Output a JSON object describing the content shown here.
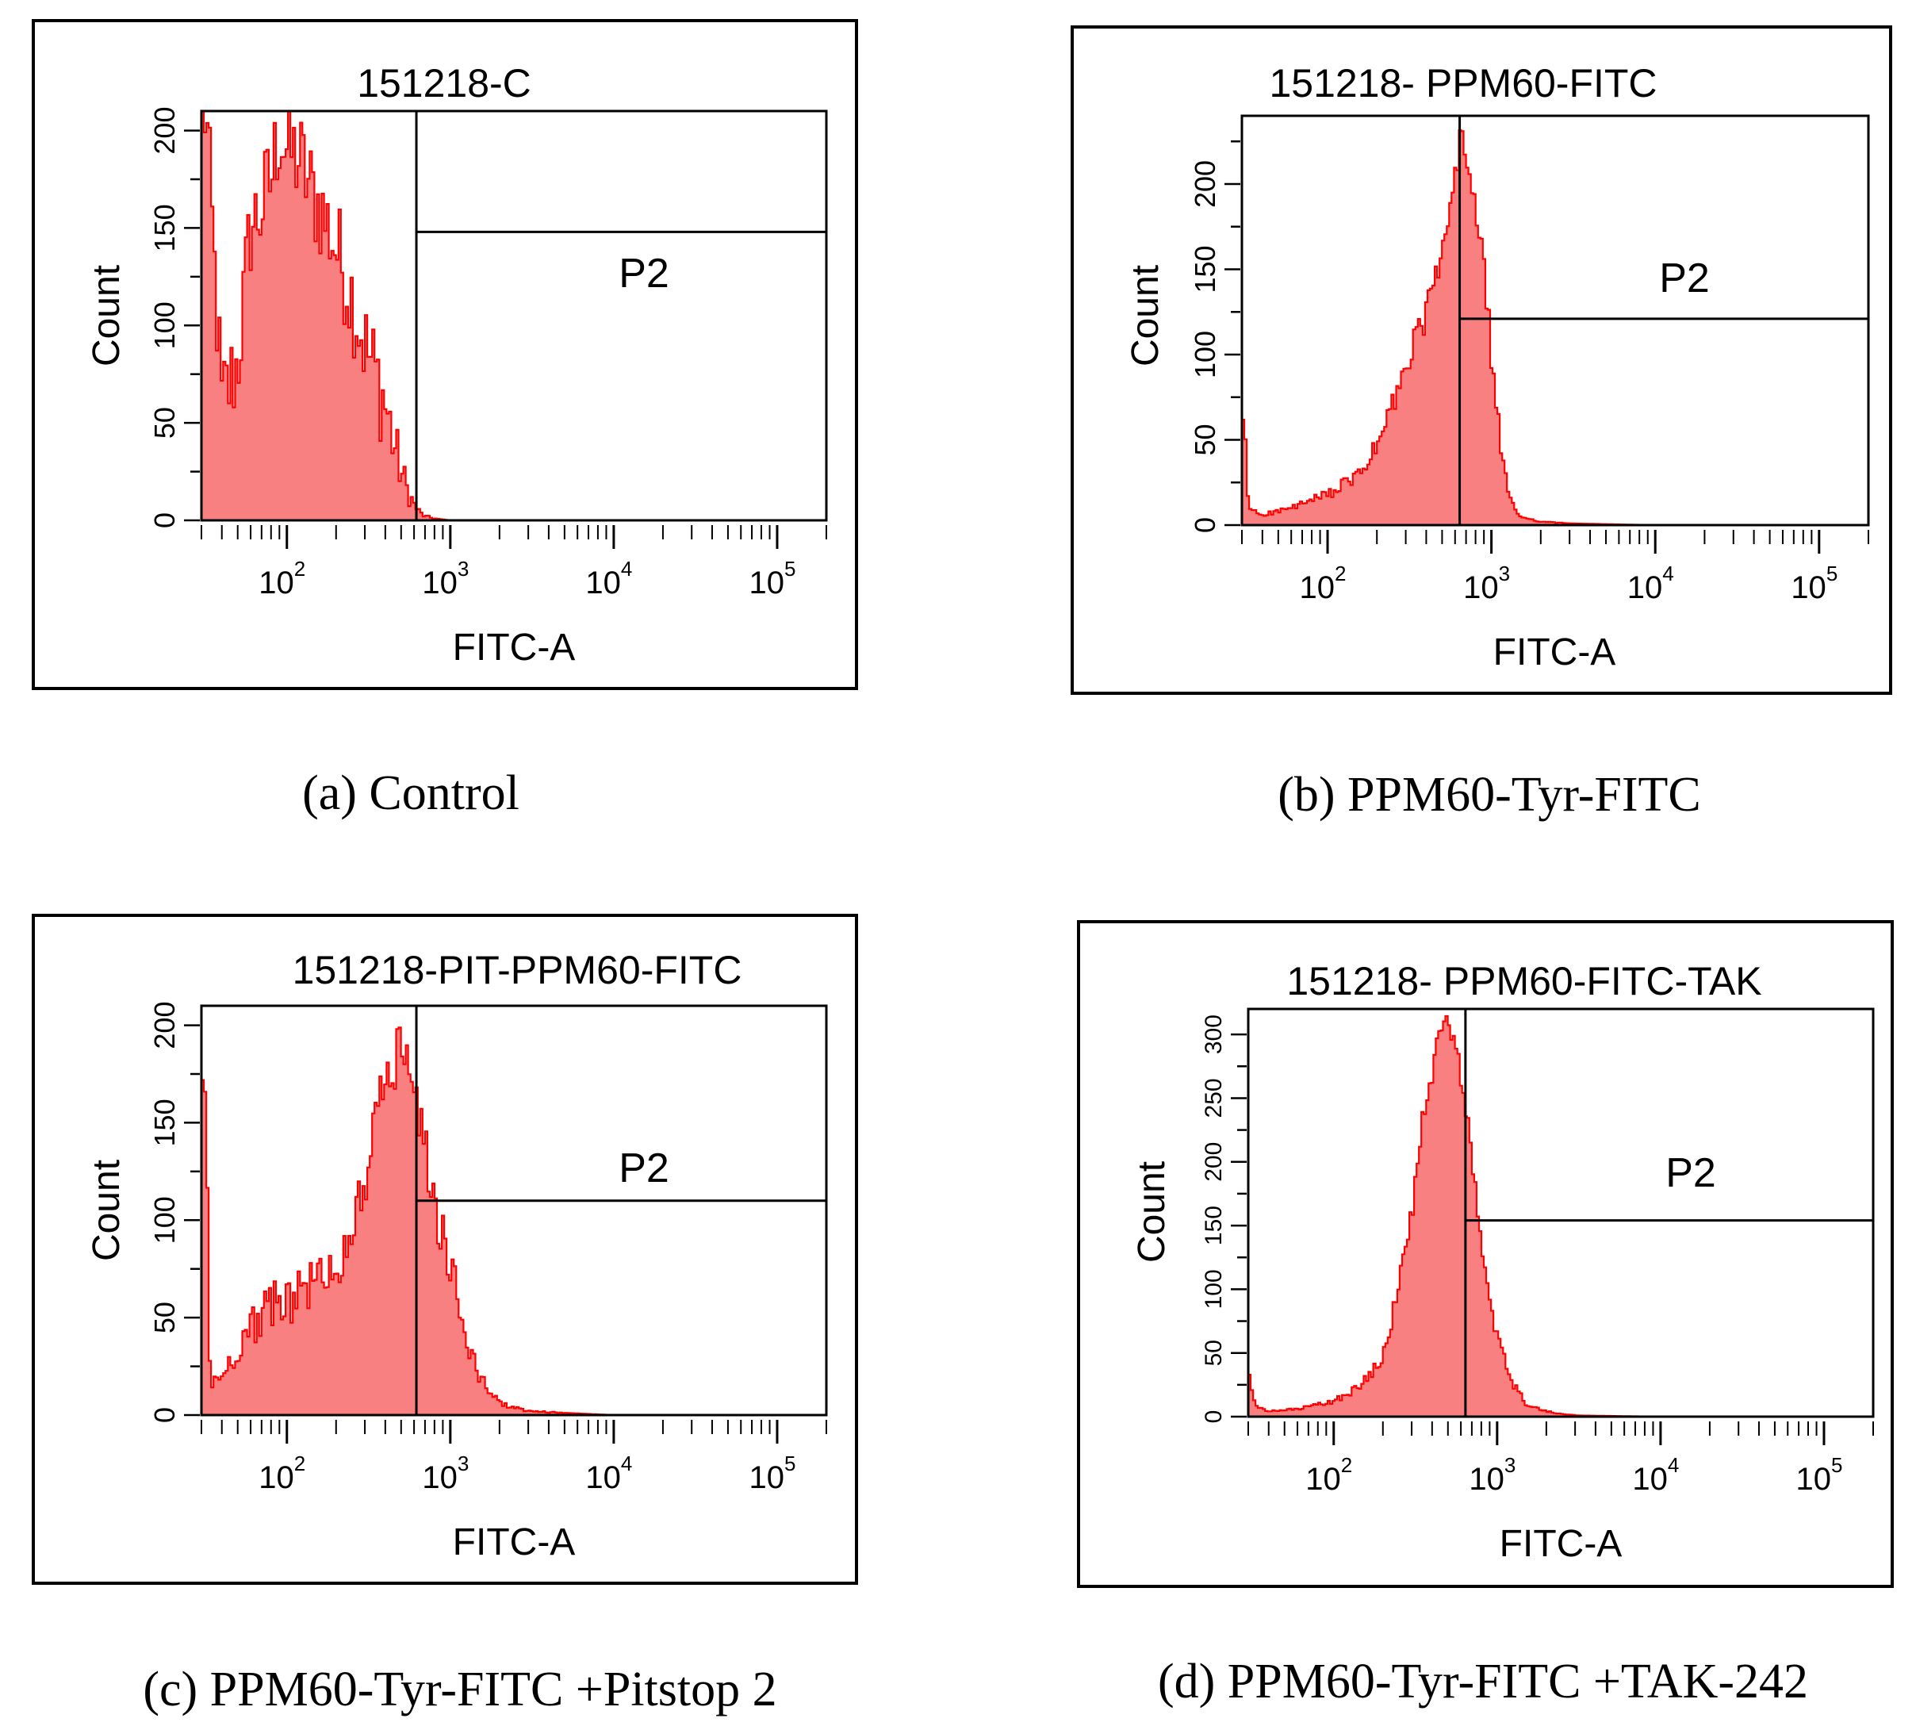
{
  "panels": [
    {
      "id": "a",
      "title": "151218-C",
      "caption": "(a) Control",
      "gate_label": "P2",
      "chart_data": {
        "type": "histogram",
        "title": "151218-C",
        "xlabel": "FITC-A",
        "ylabel": "Count",
        "x_scale": "log",
        "xlim": [
          30,
          200000
        ],
        "ylim": [
          0,
          210
        ],
        "yticks": [
          0,
          50,
          100,
          150,
          200
        ],
        "xticks": [
          100,
          1000,
          10000,
          100000
        ],
        "xtick_labels": [
          [
            "10",
            "2"
          ],
          [
            "10",
            "3"
          ],
          [
            "10",
            "4"
          ],
          [
            "10",
            "5"
          ]
        ],
        "gate": {
          "name": "P2",
          "x_threshold": 620,
          "level": 148
        },
        "series": [
          {
            "name": "FITC-A",
            "color": "#ff0000",
            "fill": "#f88080",
            "x": [
              32,
              40,
              50,
              60,
              70,
              80,
              90,
              100,
              120,
              140,
              160,
              180,
              200,
              230,
              260,
              300,
              350,
              400,
              450,
              500,
              550,
              600,
              650,
              700,
              800,
              1000,
              5000,
              20000,
              200000
            ],
            "values": [
              210,
              60,
              80,
              150,
              160,
              175,
              200,
              190,
              185,
              170,
              160,
              150,
              140,
              125,
              110,
              90,
              75,
              60,
              40,
              25,
              15,
              8,
              4,
              2,
              1,
              0,
              0,
              0,
              0
            ],
            "noise": 28
          }
        ]
      }
    },
    {
      "id": "b",
      "title": "151218- PPM60-FITC",
      "caption": "(b) PPM60-Tyr-FITC",
      "gate_label": "P2",
      "chart_data": {
        "type": "histogram",
        "title": "151218- PPM60-FITC",
        "xlabel": "FITC-A",
        "ylabel": "Count",
        "x_scale": "log",
        "xlim": [
          30,
          200000
        ],
        "ylim": [
          0,
          240
        ],
        "yticks": [
          0,
          50,
          100,
          150,
          200
        ],
        "xticks": [
          100,
          1000,
          10000,
          100000
        ],
        "xtick_labels": [
          [
            "10",
            "2"
          ],
          [
            "10",
            "3"
          ],
          [
            "10",
            "4"
          ],
          [
            "10",
            "5"
          ]
        ],
        "gate": {
          "name": "P2",
          "x_threshold": 640,
          "level": 121
        },
        "series": [
          {
            "name": "FITC-A",
            "color": "#ff0000",
            "fill": "#f88080",
            "x": [
              31,
              33,
              40,
              60,
              100,
              150,
              200,
              250,
              300,
              350,
              400,
              450,
              500,
              550,
              600,
              650,
              700,
              750,
              800,
              900,
              1000,
              1100,
              1200,
              1300,
              1500,
              2000,
              3000,
              10000,
              200000
            ],
            "values": [
              58,
              10,
              6,
              10,
              18,
              28,
              45,
              70,
              90,
              110,
              125,
              140,
              160,
              180,
              200,
              230,
              220,
              200,
              185,
              150,
              100,
              60,
              30,
              15,
              5,
              2,
              1,
              0,
              0
            ],
            "noise": 10
          }
        ]
      }
    },
    {
      "id": "c",
      "title": "151218-PIT-PPM60-FITC",
      "caption": "(c) PPM60-Tyr-FITC +Pitstop 2",
      "gate_label": "P2",
      "chart_data": {
        "type": "histogram",
        "title": "151218-PIT-PPM60-FITC",
        "xlabel": "FITC-A",
        "ylabel": "Count",
        "x_scale": "log",
        "xlim": [
          30,
          200000
        ],
        "ylim": [
          0,
          210
        ],
        "yticks": [
          0,
          50,
          100,
          150,
          200
        ],
        "xticks": [
          100,
          1000,
          10000,
          100000
        ],
        "xtick_labels": [
          [
            "10",
            "2"
          ],
          [
            "10",
            "3"
          ],
          [
            "10",
            "4"
          ],
          [
            "10",
            "5"
          ]
        ],
        "gate": {
          "name": "P2",
          "x_threshold": 620,
          "level": 110
        },
        "series": [
          {
            "name": "FITC-A",
            "color": "#ff0000",
            "fill": "#f88080",
            "x": [
              32,
              34,
              40,
              60,
              80,
              100,
              130,
              160,
              200,
              250,
              300,
              350,
              400,
              450,
              500,
              550,
              600,
              650,
              700,
              800,
              900,
              1000,
              1200,
              1500,
              2000,
              3000,
              10000,
              200000
            ],
            "values": [
              165,
              15,
              20,
              45,
              55,
              60,
              65,
              70,
              75,
              95,
              120,
              150,
              170,
              175,
              195,
              185,
              165,
              155,
              135,
              110,
              90,
              75,
              45,
              20,
              6,
              2,
              0,
              0
            ],
            "noise": 14
          }
        ]
      }
    },
    {
      "id": "d",
      "title": "151218- PPM60-FITC-TAK",
      "caption": "(d) PPM60-Tyr-FITC +TAK-242",
      "gate_label": "P2",
      "chart_data": {
        "type": "histogram",
        "title": "151218- PPM60-FITC-TAK",
        "xlabel": "FITC-A",
        "ylabel": "Count",
        "x_scale": "log",
        "xlim": [
          30,
          200000
        ],
        "ylim": [
          0,
          320
        ],
        "yticks": [
          0,
          50,
          100,
          150,
          200,
          250,
          300
        ],
        "xticks": [
          100,
          1000,
          10000,
          100000
        ],
        "xtick_labels": [
          [
            "10",
            "2"
          ],
          [
            "10",
            "3"
          ],
          [
            "10",
            "4"
          ],
          [
            "10",
            "5"
          ]
        ],
        "gate": {
          "name": "P2",
          "x_threshold": 640,
          "level": 154
        },
        "series": [
          {
            "name": "FITC-A",
            "color": "#ff0000",
            "fill": "#f88080",
            "x": [
              31,
              33,
              40,
              60,
              100,
              150,
              200,
              250,
              300,
              350,
              400,
              450,
              500,
              550,
              600,
              650,
              700,
              750,
              800,
              900,
              1000,
              1200,
              1500,
              2000,
              3000,
              10000,
              200000
            ],
            "values": [
              30,
              8,
              4,
              6,
              12,
              25,
              50,
              100,
              160,
              230,
              270,
              300,
              310,
              290,
              270,
              240,
              200,
              170,
              130,
              90,
              60,
              30,
              10,
              4,
              1,
              0,
              0
            ],
            "noise": 10
          }
        ]
      }
    }
  ]
}
